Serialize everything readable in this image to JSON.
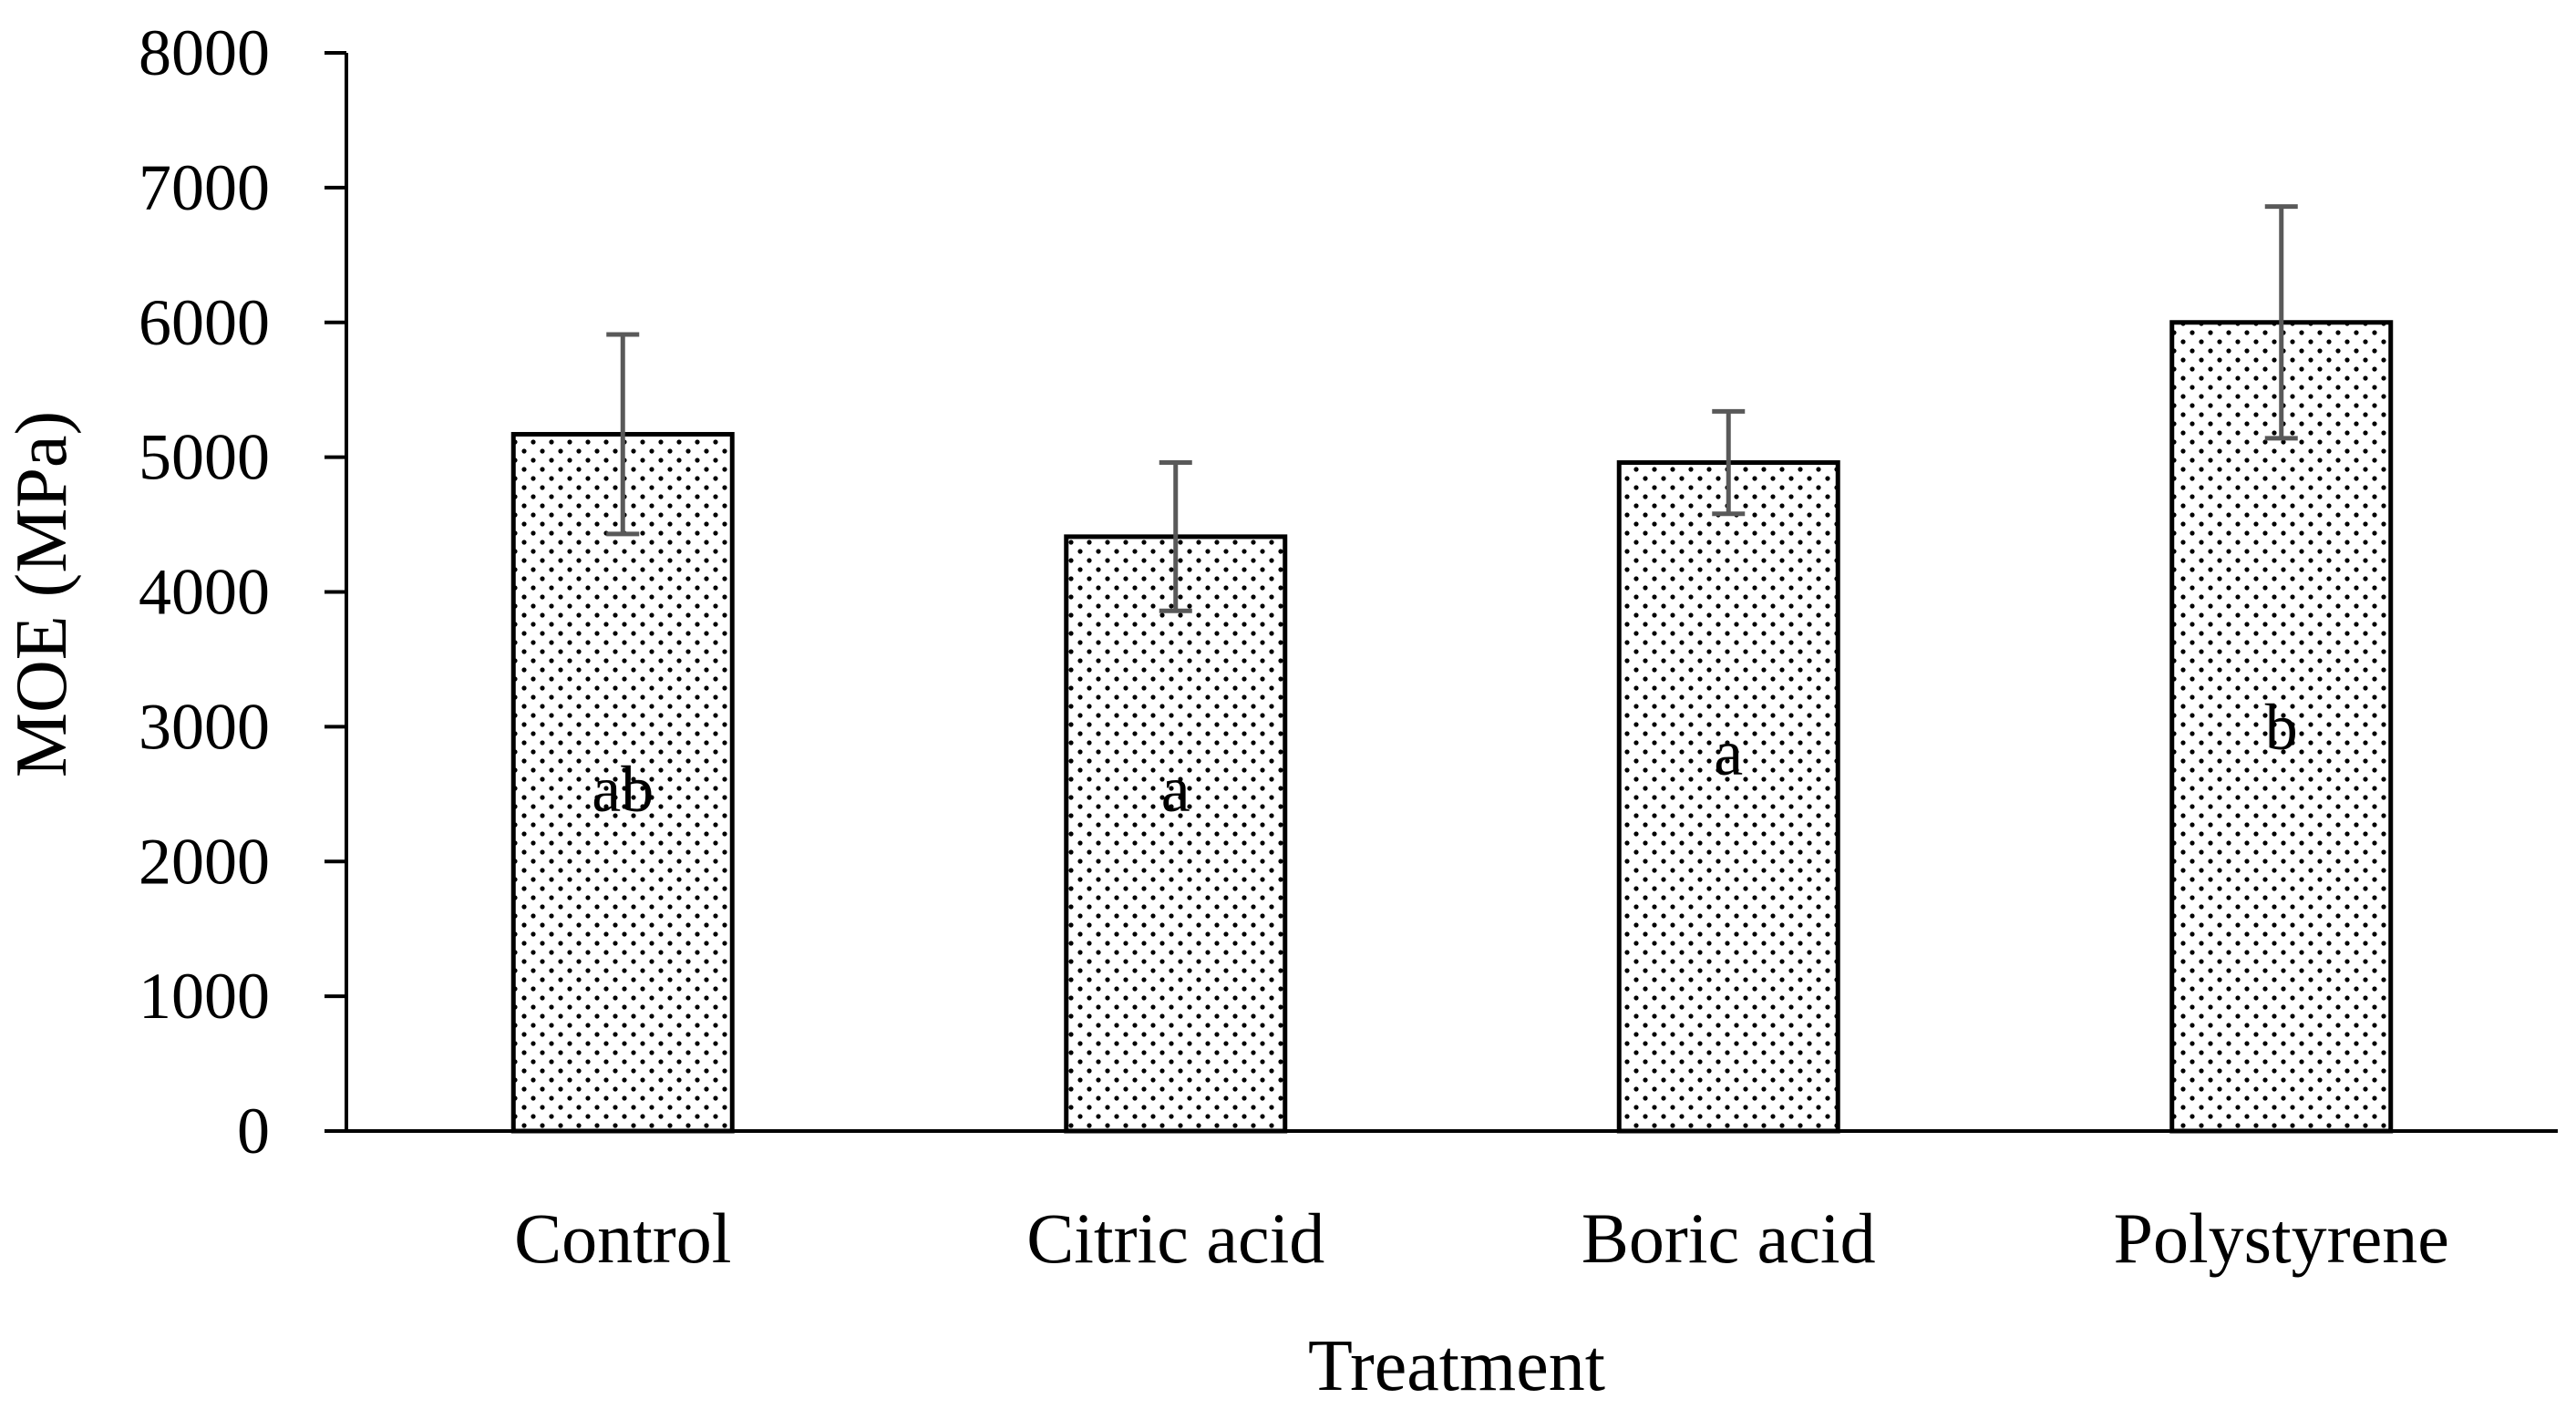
{
  "chart_data": {
    "type": "bar",
    "categories": [
      "Control",
      "Citric acid",
      "Boric acid",
      "Polystyrene"
    ],
    "values": [
      5170,
      4410,
      4960,
      6000
    ],
    "errors": [
      740,
      550,
      380,
      860
    ],
    "significance_letters": [
      "ab",
      "a",
      "a",
      "b"
    ],
    "title": "",
    "xlabel": "Treatment",
    "ylabel": "MOE (MPa)",
    "ylim": [
      0,
      8000
    ],
    "yticks": [
      0,
      1000,
      2000,
      3000,
      4000,
      5000,
      6000,
      7000,
      8000
    ],
    "grid": false,
    "legend": "none",
    "bar_fill": "dotted",
    "colors": {
      "bar_outline": "#000000",
      "dots": "#000000",
      "error_bar": "#595959",
      "axis": "#000000"
    }
  }
}
